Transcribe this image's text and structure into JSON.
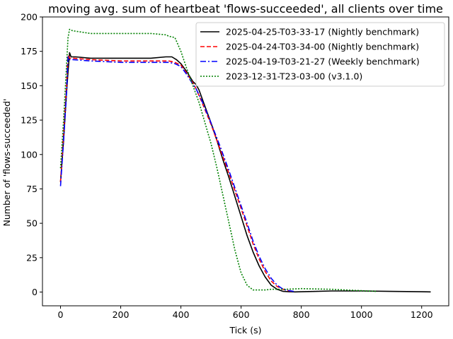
{
  "chart_data": {
    "type": "line",
    "title": "moving avg. sum of heartbeat 'flows-succeeded', all clients over time",
    "xlabel": "Tick (s)",
    "ylabel": "Number of 'flows-succeeded'",
    "xlim": [
      -60,
      1290
    ],
    "ylim": [
      -10,
      200
    ],
    "xticks": [
      0,
      200,
      400,
      600,
      800,
      1000,
      1200
    ],
    "yticks": [
      0,
      25,
      50,
      75,
      100,
      125,
      150,
      175,
      200
    ],
    "grid": false,
    "legend_position": "top-right",
    "series": [
      {
        "name": "2025-04-25-T03-33-17 (Nightly benchmark)",
        "color": "#000000",
        "dash": "solid",
        "x": [
          0,
          10,
          20,
          25,
          30,
          35,
          50,
          100,
          150,
          200,
          250,
          300,
          350,
          370,
          385,
          400,
          420,
          440,
          450,
          460,
          480,
          500,
          520,
          540,
          560,
          580,
          600,
          620,
          640,
          660,
          680,
          700,
          720,
          740,
          760,
          780,
          800,
          850,
          900,
          1000,
          1100,
          1200,
          1230
        ],
        "y": [
          80,
          110,
          145,
          160,
          174,
          171,
          171,
          170,
          170,
          170,
          170,
          170,
          171,
          171,
          169,
          166,
          160,
          153,
          151,
          147,
          135,
          123,
          110,
          96,
          83,
          69,
          55,
          41,
          29,
          19,
          11,
          5,
          2,
          0.5,
          0.2,
          0.1,
          0.2,
          0.5,
          0.8,
          0.8,
          0.5,
          0.2,
          0.1
        ]
      },
      {
        "name": "2025-04-24-T03-34-00 (Nightly benchmark)",
        "color": "#ff0000",
        "dash": "dashed",
        "x": [
          0,
          10,
          20,
          25,
          30,
          40,
          100,
          200,
          300,
          360,
          380,
          400,
          420,
          440,
          450,
          470,
          500,
          530,
          560,
          590,
          620,
          640,
          660,
          680,
          700,
          720,
          740,
          760,
          770
        ],
        "y": [
          80,
          115,
          150,
          172,
          170,
          170,
          169,
          168,
          168,
          168,
          167,
          165,
          159,
          152,
          148,
          138,
          122,
          104,
          86,
          67,
          48,
          35,
          24,
          15,
          8,
          4,
          2,
          0.8,
          0.5
        ]
      },
      {
        "name": "2025-04-19-T03-21-27 (Weekly benchmark)",
        "color": "#0000ff",
        "dash": "dashdot",
        "x": [
          0,
          10,
          20,
          25,
          30,
          40,
          100,
          200,
          300,
          360,
          380,
          400,
          420,
          440,
          450,
          470,
          500,
          530,
          560,
          590,
          620,
          640,
          660,
          680,
          700,
          720,
          740,
          760,
          775
        ],
        "y": [
          77,
          110,
          145,
          171,
          169,
          169,
          168,
          167,
          167,
          167,
          166,
          164,
          158,
          151,
          148,
          139,
          123,
          106,
          88,
          69,
          50,
          37,
          26,
          17,
          10,
          5,
          2,
          1,
          0.5
        ]
      },
      {
        "name": "2023-12-31-T23-03-00 (v3.1.0)",
        "color": "#008000",
        "dash": "dotted",
        "x": [
          0,
          10,
          20,
          25,
          30,
          40,
          100,
          200,
          300,
          350,
          360,
          380,
          400,
          420,
          440,
          460,
          480,
          500,
          520,
          540,
          560,
          580,
          600,
          620,
          640,
          660,
          680,
          700,
          750,
          800,
          900,
          1000,
          1050
        ],
        "y": [
          90,
          125,
          165,
          185,
          191,
          190,
          188,
          188,
          188,
          187,
          186,
          185,
          175,
          162,
          150,
          138,
          123,
          108,
          90,
          70,
          50,
          30,
          14,
          5,
          1.5,
          1.5,
          1.5,
          2,
          2,
          2.5,
          2,
          1,
          0.5
        ]
      }
    ]
  }
}
